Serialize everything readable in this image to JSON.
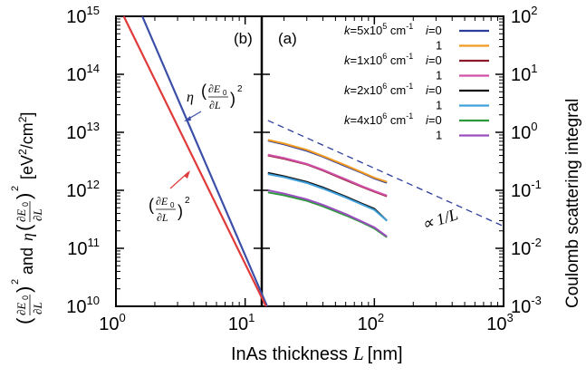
{
  "chart_data": [
    {
      "panel": "(b)",
      "type": "line",
      "xscale": "log",
      "yscale": "log",
      "xlim": [
        1,
        1000
      ],
      "ylim": [
        10000000000.0,
        1000000000000000.0
      ],
      "y_tick_labels": [
        "10",
        "10",
        "10",
        "10",
        "10",
        "10"
      ],
      "y_tick_exponents": [
        "10",
        "11",
        "12",
        "13",
        "14",
        "15"
      ],
      "ylabel_parts": [
        "and",
        "[eV",
        "2",
        "/cm",
        "2",
        "]"
      ],
      "series": [
        {
          "label": "η(∂E0/∂L)^2",
          "color": "#3b4fa8",
          "x": [
            1.6,
            14.8
          ],
          "y": [
            1000000000000000.0,
            10000000000.0
          ]
        },
        {
          "label": "(∂E0/∂L)^2",
          "color": "#e03a3a",
          "x": [
            1.15,
            14.5
          ],
          "y": [
            1000000000000000.0,
            10000000000.0
          ]
        }
      ],
      "annotations": [
        {
          "target": "η(∂E0/∂L)^2",
          "label_main": "η",
          "label_inner": "∂E",
          "label_sub": "0",
          "label_den": "∂L",
          "label_pow": "2"
        },
        {
          "target": "(∂E0/∂L)^2",
          "label_inner": "∂E",
          "label_sub": "0",
          "label_den": "∂L",
          "label_pow": "2"
        }
      ]
    },
    {
      "panel": "(a)",
      "type": "line",
      "xscale": "log",
      "yscale": "log",
      "xlim": [
        1,
        1000
      ],
      "ylim": [
        0.001,
        100
      ],
      "y_tick_labels": [
        "10",
        "10",
        "10",
        "10",
        "10",
        "10"
      ],
      "y_tick_exponents": [
        "-3",
        "-2",
        "-1",
        "0",
        "1",
        "2"
      ],
      "ylabel": "Coulomb scattering integral",
      "x_tick_labels": [
        "10",
        "10",
        "10",
        "10"
      ],
      "x_tick_exponents": [
        "0",
        "1",
        "2",
        "3"
      ],
      "xlabel_text": "InAs thickness",
      "xlabel_var": "L",
      "xlabel_unit": "[nm]",
      "series": [
        {
          "k": "k=5x10^5 cm^-1",
          "i": "0",
          "color": "#2c3e9c",
          "x": [
            15,
            20,
            30,
            40,
            60,
            80,
            100,
            125
          ],
          "y": [
            0.72,
            0.62,
            0.48,
            0.38,
            0.26,
            0.2,
            0.16,
            0.135
          ]
        },
        {
          "k": "",
          "i": "1",
          "color": "#f39a20",
          "x": [
            15,
            20,
            30,
            40,
            60,
            80,
            100,
            125
          ],
          "y": [
            0.74,
            0.64,
            0.5,
            0.39,
            0.27,
            0.205,
            0.165,
            0.14
          ]
        },
        {
          "k": "k=1x10^6 cm^-1",
          "i": "0",
          "color": "#8b1a2a",
          "x": [
            15,
            20,
            30,
            40,
            60,
            80,
            100,
            125
          ],
          "y": [
            0.4,
            0.35,
            0.28,
            0.22,
            0.15,
            0.115,
            0.095,
            0.079
          ]
        },
        {
          "k": "",
          "i": "1",
          "color": "#d24fa8",
          "x": [
            15,
            20,
            30,
            40,
            60,
            80,
            100,
            125
          ],
          "y": [
            0.41,
            0.36,
            0.285,
            0.225,
            0.155,
            0.118,
            0.097,
            0.081
          ]
        },
        {
          "k": "k=2x10^6 cm^-1",
          "i": "0",
          "color": "#111111",
          "x": [
            15,
            20,
            30,
            40,
            60,
            80,
            100,
            125
          ],
          "y": [
            0.2,
            0.175,
            0.14,
            0.112,
            0.078,
            0.059,
            0.048,
            0.03
          ]
        },
        {
          "k": "",
          "i": "1",
          "color": "#3fa0dc",
          "x": [
            15,
            20,
            30,
            40,
            60,
            80,
            100,
            125
          ],
          "y": [
            0.19,
            0.168,
            0.134,
            0.107,
            0.075,
            0.057,
            0.046,
            0.03
          ]
        },
        {
          "k": "k=4x10^6 cm^-1",
          "i": "0",
          "color": "#2a9a3a",
          "x": [
            15,
            20,
            30,
            40,
            60,
            80,
            100,
            125
          ],
          "y": [
            0.092,
            0.082,
            0.066,
            0.053,
            0.037,
            0.028,
            0.022,
            0.0155
          ]
        },
        {
          "k": "",
          "i": "1",
          "color": "#9a4ec0",
          "x": [
            15,
            20,
            30,
            40,
            60,
            80,
            100,
            125
          ],
          "y": [
            0.1,
            0.088,
            0.07,
            0.056,
            0.039,
            0.029,
            0.023,
            0.016
          ]
        }
      ],
      "reference_line": {
        "label_prefix": "∝",
        "label_frac": "1/",
        "label_var": "L",
        "style": "dashed",
        "color": "#2c3e9c",
        "x": [
          15,
          1000
        ],
        "y": [
          1.6,
          0.024
        ]
      }
    }
  ],
  "legend": {
    "rows": [
      {
        "k_prefix": "k",
        "k_text": "=5x10",
        "k_exp": "5",
        "unit": " cm",
        "unit_exp": "-1",
        "i_prefix": "i",
        "i_text": "=0",
        "color": "#2c3e9c"
      },
      {
        "k_prefix": "",
        "k_text": "",
        "k_exp": "",
        "unit": "",
        "unit_exp": "",
        "i_prefix": "",
        "i_text": "1",
        "color": "#f39a20"
      },
      {
        "k_prefix": "k",
        "k_text": "=1x10",
        "k_exp": "6",
        "unit": " cm",
        "unit_exp": "-1",
        "i_prefix": "i",
        "i_text": "=0",
        "color": "#8b1a2a"
      },
      {
        "k_prefix": "",
        "k_text": "",
        "k_exp": "",
        "unit": "",
        "unit_exp": "",
        "i_prefix": "",
        "i_text": "1",
        "color": "#d24fa8"
      },
      {
        "k_prefix": "k",
        "k_text": "=2x10",
        "k_exp": "6",
        "unit": " cm",
        "unit_exp": "-1",
        "i_prefix": "i",
        "i_text": "=0",
        "color": "#111111"
      },
      {
        "k_prefix": "",
        "k_text": "",
        "k_exp": "",
        "unit": "",
        "unit_exp": "",
        "i_prefix": "",
        "i_text": "1",
        "color": "#3fa0dc"
      },
      {
        "k_prefix": "k",
        "k_text": "=4x10",
        "k_exp": "6",
        "unit": " cm",
        "unit_exp": "-1",
        "i_prefix": "i",
        "i_text": "=0",
        "color": "#2a9a3a"
      },
      {
        "k_prefix": "",
        "k_text": "",
        "k_exp": "",
        "unit": "",
        "unit_exp": "",
        "i_prefix": "",
        "i_text": "1",
        "color": "#9a4ec0"
      }
    ]
  }
}
